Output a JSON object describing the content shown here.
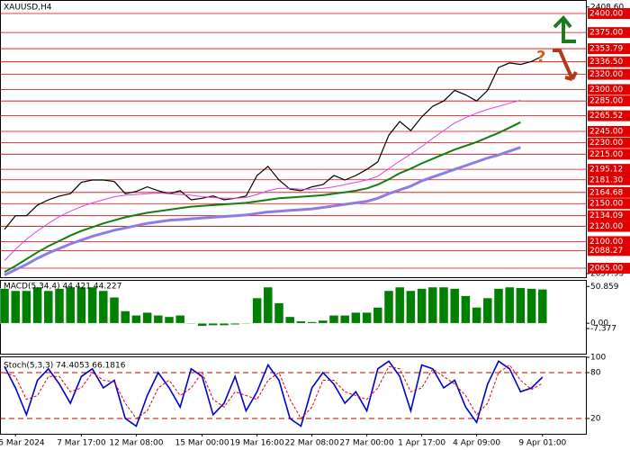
{
  "symbol": "XAUUSD,H4",
  "question_mark": "?",
  "chart_data": [
    {
      "type": "line",
      "categories": [
        null,
        "5 Mar 2024",
        null,
        null,
        null,
        null,
        null,
        "7 Mar 17:00",
        null,
        null,
        null,
        null,
        "12 Mar 08:00",
        null,
        null,
        null,
        null,
        null,
        "15 Mar 00:00",
        null,
        null,
        null,
        null,
        "19 Mar 16:00",
        null,
        null,
        null,
        null,
        "22 Mar 08:00",
        null,
        null,
        null,
        null,
        "27 Mar 00:00",
        null,
        null,
        null,
        null,
        "1 Apr 17:00",
        null,
        null,
        null,
        null,
        "4 Apr 09:00",
        null,
        null,
        null,
        null,
        null,
        "9 Apr 01:00"
      ],
      "ylim": [
        2053.2,
        2417.8
      ],
      "yticks": [
        {
          "value": 2408.6,
          "label": "2408.60"
        },
        {
          "value": 2057.95,
          "label": "2057.95"
        }
      ],
      "levels": [
        {
          "value": 2400,
          "label": "2400.00"
        },
        {
          "value": 2375,
          "label": "2375.00"
        },
        {
          "value": 2353.79,
          "label": "2353.79"
        },
        {
          "value": 2336.5,
          "label": "2336.50"
        },
        {
          "value": 2320,
          "label": "2320.00"
        },
        {
          "value": 2300,
          "label": "2300.00"
        },
        {
          "value": 2285,
          "label": "2285.00"
        },
        {
          "value": 2265.52,
          "label": "2265.52"
        },
        {
          "value": 2245,
          "label": "2245.00"
        },
        {
          "value": 2230,
          "label": "2230.00"
        },
        {
          "value": 2215,
          "label": "2215.00"
        },
        {
          "value": 2195.12,
          "label": "2195.12"
        },
        {
          "value": 2181.3,
          "label": "2181.30"
        },
        {
          "value": 2164.68,
          "label": "2164.68"
        },
        {
          "value": 2150,
          "label": "2150.00"
        },
        {
          "value": 2134.09,
          "label": "2134.09"
        },
        {
          "value": 2120,
          "label": "2120.00"
        },
        {
          "value": 2100,
          "label": "2100.00"
        },
        {
          "value": 2088.27,
          "label": "2088.27"
        },
        {
          "value": 2065,
          "label": "2065.00"
        }
      ],
      "level_color": "#e00000",
      "series": [
        {
          "color": "#000000",
          "width": 1.2,
          "values": [
            2116,
            2134,
            2134,
            2148,
            2155,
            2160,
            2163,
            2178,
            2181,
            2181,
            2179,
            2163,
            2166,
            2172,
            2167,
            2163,
            2167,
            2155,
            2157,
            2160,
            2155,
            2157,
            2160,
            2187,
            2199,
            2181,
            2169,
            2167,
            2172,
            2175,
            2187,
            2181,
            2187,
            2195,
            2205,
            2240,
            2258,
            2246,
            2264,
            2278,
            2285,
            2299,
            2293,
            2285,
            2299,
            2329,
            2335,
            2333,
            2337,
            2344
          ]
        },
        {
          "color": "#e040e0",
          "width": 1,
          "values": [
            2075,
            2090,
            2103,
            2114,
            2124,
            2133,
            2140,
            2146,
            2151,
            2155,
            2159,
            2161,
            2162,
            2163,
            2164,
            2163,
            2162,
            2161,
            2159,
            2158,
            2157,
            2157,
            2158,
            2162,
            2167,
            2170,
            2170,
            2169,
            2169,
            2170,
            2172,
            2175,
            2178,
            2181,
            2186,
            2196,
            2206,
            2215,
            2225,
            2236,
            2246,
            2256,
            2263,
            2269,
            2274,
            2278,
            2282,
            2286,
            null,
            null
          ]
        },
        {
          "color": "#108010",
          "width": 2,
          "values": [
            2060,
            2068,
            2077,
            2086,
            2094,
            2101,
            2108,
            2114,
            2119,
            2124,
            2128,
            2132,
            2135,
            2138,
            2140,
            2142,
            2144,
            2146,
            2147,
            2148,
            2149,
            2150,
            2151,
            2153,
            2155,
            2157,
            2158,
            2159,
            2160,
            2161,
            2163,
            2165,
            2167,
            2170,
            2175,
            2182,
            2190,
            2196,
            2203,
            2209,
            2215,
            2221,
            2226,
            2231,
            2237,
            2243,
            2250,
            2257,
            null,
            null
          ]
        },
        {
          "color": "#8c7ce8",
          "width": 3,
          "values": [
            2056,
            2063,
            2070,
            2078,
            2085,
            2091,
            2097,
            2102,
            2107,
            2111,
            2115,
            2118,
            2121,
            2124,
            2126,
            2128,
            2129,
            2130,
            2131,
            2132,
            2133,
            2134,
            2135,
            2137,
            2139,
            2140,
            2141,
            2142,
            2143,
            2145,
            2147,
            2149,
            2151,
            2153,
            2157,
            2163,
            2168,
            2173,
            2180,
            2185,
            2190,
            2195,
            2200,
            2205,
            2210,
            2214,
            2219,
            2224,
            null,
            null
          ]
        }
      ]
    },
    {
      "type": "bar",
      "title": "MACD(5,34,4) 44.421 44.227",
      "color": "#008000",
      "ylim": [
        -8.5,
        58.7
      ],
      "yticks": [
        50.859,
        {
          "value": 0,
          "label": "0.00"
        },
        -7.377
      ],
      "values": [
        48,
        45,
        45,
        50,
        45,
        48,
        50,
        50,
        50,
        45,
        36,
        17,
        11,
        15,
        11,
        9,
        11,
        -1,
        -4,
        -3,
        -3,
        -2,
        -1,
        35,
        50,
        28,
        9,
        3,
        2,
        4,
        11,
        11,
        15,
        15,
        22,
        45,
        50,
        45,
        48,
        50,
        50,
        48,
        38,
        22,
        35,
        48,
        50,
        49,
        48,
        47
      ]
    },
    {
      "type": "line",
      "title": "Stoch(5,3,3) 74.4053 66.1816",
      "ylim": [
        0,
        100
      ],
      "yticks": [
        100,
        80,
        20
      ],
      "levels": [
        80,
        20
      ],
      "level_color": "#c00000",
      "series": [
        {
          "color": "#0000cc",
          "width": 1.6,
          "values": [
            88,
            60,
            25,
            70,
            85,
            65,
            40,
            75,
            85,
            60,
            70,
            20,
            10,
            50,
            80,
            60,
            35,
            85,
            75,
            25,
            40,
            75,
            30,
            55,
            90,
            70,
            20,
            10,
            60,
            80,
            65,
            40,
            55,
            30,
            85,
            95,
            75,
            30,
            90,
            85,
            60,
            70,
            35,
            15,
            65,
            95,
            85,
            55,
            60,
            74
          ]
        },
        {
          "color": "#e00000",
          "width": 1,
          "dashed": true,
          "values": [
            80,
            75,
            45,
            50,
            75,
            75,
            55,
            60,
            80,
            70,
            68,
            40,
            20,
            30,
            60,
            70,
            50,
            60,
            80,
            45,
            35,
            55,
            50,
            45,
            70,
            80,
            45,
            20,
            35,
            70,
            70,
            55,
            50,
            45,
            60,
            88,
            85,
            55,
            60,
            85,
            75,
            65,
            50,
            25,
            40,
            80,
            90,
            70,
            58,
            66
          ]
        }
      ]
    }
  ]
}
